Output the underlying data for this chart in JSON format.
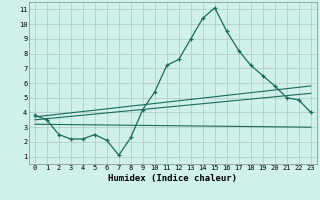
{
  "xlabel": "Humidex (Indice chaleur)",
  "bg_color": "#cff0eb",
  "grid_color": "#b0c8c4",
  "line_color": "#1a6b5a",
  "xlim": [
    -0.5,
    23.5
  ],
  "ylim": [
    0.5,
    11.5
  ],
  "xticks": [
    0,
    1,
    2,
    3,
    4,
    5,
    6,
    7,
    8,
    9,
    10,
    11,
    12,
    13,
    14,
    15,
    16,
    17,
    18,
    19,
    20,
    21,
    22,
    23
  ],
  "yticks": [
    1,
    2,
    3,
    4,
    5,
    6,
    7,
    8,
    9,
    10,
    11
  ],
  "main_line_x": [
    0,
    1,
    2,
    3,
    4,
    5,
    6,
    7,
    8,
    9,
    10,
    11,
    12,
    13,
    14,
    15,
    16,
    17,
    18,
    19,
    20,
    21,
    22,
    23
  ],
  "main_line_y": [
    3.8,
    3.5,
    2.5,
    2.2,
    2.2,
    2.5,
    2.1,
    1.1,
    2.3,
    4.2,
    5.4,
    7.2,
    7.6,
    9.0,
    10.4,
    11.1,
    9.5,
    8.2,
    7.2,
    6.5,
    5.8,
    5.0,
    4.85,
    4.0
  ],
  "trend_lines": [
    {
      "x": [
        0,
        23
      ],
      "y": [
        3.7,
        5.8
      ]
    },
    {
      "x": [
        0,
        23
      ],
      "y": [
        3.5,
        5.3
      ]
    },
    {
      "x": [
        0,
        23
      ],
      "y": [
        3.2,
        3.0
      ]
    }
  ],
  "tick_fontsize": 5.0,
  "xlabel_fontsize": 6.5,
  "xlabel_fontweight": "bold"
}
